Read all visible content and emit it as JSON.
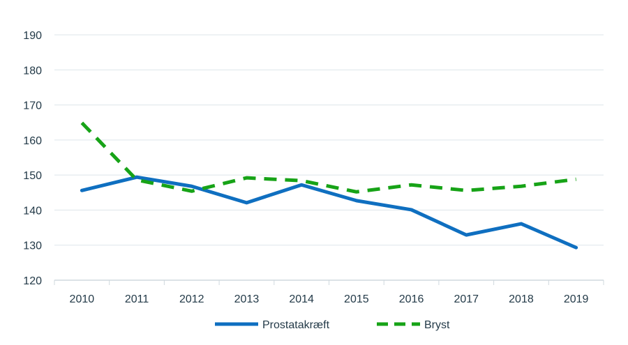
{
  "chart_data": {
    "type": "line",
    "title": "",
    "xlabel": "",
    "ylabel": "",
    "categories": [
      "2010",
      "2011",
      "2012",
      "2013",
      "2014",
      "2015",
      "2016",
      "2017",
      "2018",
      "2019"
    ],
    "ylim": [
      120,
      190
    ],
    "yticks": [
      120,
      130,
      140,
      150,
      160,
      170,
      180,
      190
    ],
    "grid": true,
    "legend_position": "bottom",
    "series": [
      {
        "name": "Prostatakræft",
        "color": "#0f6fc0",
        "style": "solid",
        "values": [
          145.6,
          149.4,
          146.8,
          142.1,
          147.2,
          142.7,
          140.1,
          132.9,
          136.1,
          129.3
        ]
      },
      {
        "name": "Bryst",
        "color": "#17a317",
        "style": "dashed",
        "values": [
          164.9,
          148.6,
          145.4,
          149.2,
          148.4,
          145.2,
          147.2,
          145.6,
          146.8,
          148.8
        ]
      }
    ]
  }
}
